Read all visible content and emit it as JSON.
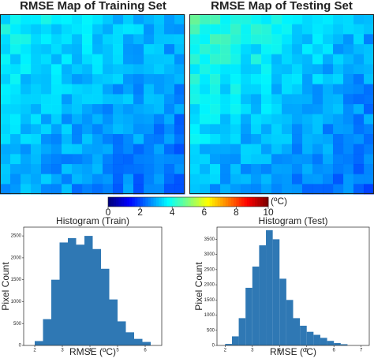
{
  "maps": {
    "left_title": "RMSE Map of Training Set",
    "right_title": "RMSE Map of Testing Set"
  },
  "chart_data": [
    {
      "type": "colorbar",
      "label": "(ºC)",
      "xlim": [
        0,
        10
      ],
      "xticks": [
        0,
        2,
        4,
        6,
        8,
        10
      ]
    },
    {
      "type": "histogram",
      "title": "Histogram (Train)",
      "x_label": "RMSE (ºC)",
      "y_label": "Pixel Count",
      "color": "#2f78b4",
      "bins": [
        2.0,
        2.3,
        2.6,
        2.9,
        3.2,
        3.5,
        3.8,
        4.1,
        4.4,
        4.7,
        5.0,
        5.3,
        5.6,
        5.9,
        6.2
      ],
      "values": [
        100,
        600,
        1500,
        2350,
        2450,
        2300,
        2500,
        2200,
        1750,
        1050,
        550,
        300,
        150,
        80
      ],
      "xlim": [
        1.6,
        6.6
      ],
      "xticks": [
        2,
        3,
        4,
        5,
        6
      ],
      "ylim": [
        0,
        2700
      ],
      "yticks": [
        0,
        500,
        1000,
        1500,
        2000,
        2500
      ]
    },
    {
      "type": "histogram",
      "title": "Histogram (Test)",
      "x_label": "RMSE (ºC)",
      "y_label": "Pixel Count",
      "color": "#2f78b4",
      "bins": [
        2.0,
        2.25,
        2.5,
        2.75,
        3.0,
        3.25,
        3.5,
        3.75,
        4.0,
        4.25,
        4.5,
        4.75,
        5.0,
        5.25,
        5.5,
        5.75,
        6.0,
        6.25,
        6.5
      ],
      "values": [
        50,
        300,
        900,
        1900,
        2600,
        3300,
        3800,
        3500,
        2200,
        1500,
        900,
        650,
        450,
        350,
        250,
        150,
        80,
        40
      ],
      "xlim": [
        1.7,
        7.3
      ],
      "xticks": [
        2,
        3,
        4,
        5,
        6,
        7
      ],
      "ylim": [
        0,
        3900
      ],
      "yticks": [
        0,
        500,
        1000,
        1500,
        2000,
        2500,
        3000,
        3500
      ]
    }
  ]
}
